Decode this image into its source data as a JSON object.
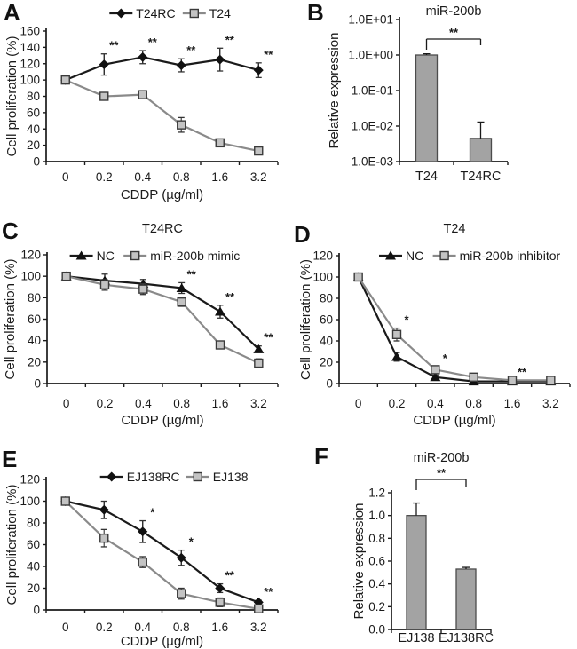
{
  "figure": {
    "background": "#ffffff",
    "text_color": "#1a1a1a",
    "colors": {
      "black_series": "#1a1a1a",
      "gray_series": "#8a8a8a",
      "square_marker_fill": "#c3c3c3",
      "square_marker_border": "#3a3a3a",
      "bar_fill": "#a3a3a3",
      "bar_border": "#4c4c4c"
    }
  },
  "chart_data": [
    {
      "panel": "A",
      "type": "line",
      "title": "",
      "xlabel": "CDDP (µg/ml)",
      "ylabel": "Cell proliferation (%)",
      "x_categories": [
        "0",
        "0.2",
        "0.4",
        "0.8",
        "1.6",
        "3.2"
      ],
      "ylim": [
        0,
        160
      ],
      "ytick_step": 20,
      "legend_position": "top",
      "series": [
        {
          "name": "T24RC",
          "marker": "diamond",
          "color": "#1a1a1a",
          "values": [
            100,
            119,
            128,
            118,
            125,
            112
          ],
          "errors": [
            0,
            13,
            8,
            8,
            14,
            9
          ],
          "sig": [
            "",
            "**",
            "**",
            "**",
            "**",
            "**"
          ]
        },
        {
          "name": "T24",
          "marker": "square",
          "color": "#8a8a8a",
          "values": [
            100,
            80,
            82,
            45,
            23,
            13
          ],
          "errors": [
            0,
            0,
            0,
            9,
            0,
            0
          ],
          "sig": [
            "",
            "",
            "",
            "",
            "",
            ""
          ]
        }
      ]
    },
    {
      "panel": "B",
      "type": "bar",
      "yscale": "log",
      "title": "miR-200b",
      "xlabel": "",
      "ylabel": "Relative expression",
      "categories": [
        "T24",
        "T24RC"
      ],
      "values": [
        1.0,
        0.0045
      ],
      "error_tops": [
        1.08,
        0.013
      ],
      "log_range": [
        -3,
        1
      ],
      "yticks": [
        {
          "v": 10,
          "label": "1.0E+01"
        },
        {
          "v": 1,
          "label": "1.0E+00"
        },
        {
          "v": 0.1,
          "label": "1.0E-01"
        },
        {
          "v": 0.01,
          "label": "1.0E-02"
        },
        {
          "v": 0.001,
          "label": "1.0E-03"
        }
      ],
      "sig": "**"
    },
    {
      "panel": "C",
      "type": "line",
      "title": "T24RC",
      "xlabel": "CDDP (µg/ml)",
      "ylabel": "Cell proliferation (%)",
      "x_categories": [
        "0",
        "0.2",
        "0.4",
        "0.8",
        "1.6",
        "3.2"
      ],
      "ylim": [
        0,
        120
      ],
      "ytick_step": 20,
      "legend_position": "top-inside",
      "series": [
        {
          "name": "NC",
          "marker": "triangle",
          "color": "#1a1a1a",
          "values": [
            100,
            96,
            93,
            89,
            67,
            32
          ],
          "errors": [
            0,
            6,
            4,
            5,
            6,
            3
          ],
          "sig": [
            "",
            "",
            "",
            "**",
            "**",
            "**"
          ]
        },
        {
          "name": "miR-200b mimic",
          "marker": "square",
          "color": "#8a8a8a",
          "values": [
            100,
            92,
            88,
            76,
            36,
            19
          ],
          "errors": [
            0,
            5,
            5,
            4,
            3,
            4
          ],
          "sig": [
            "",
            "",
            "",
            "",
            "",
            ""
          ]
        }
      ]
    },
    {
      "panel": "D",
      "type": "line",
      "title": "T24",
      "xlabel": "CDDP (µg/ml)",
      "ylabel": "Cell proliferation (%)",
      "x_categories": [
        "0",
        "0.2",
        "0.4",
        "0.8",
        "1.6",
        "3.2"
      ],
      "ylim": [
        0,
        120
      ],
      "ytick_step": 20,
      "legend_position": "top-inside",
      "series": [
        {
          "name": "NC",
          "marker": "triangle",
          "color": "#1a1a1a",
          "values": [
            100,
            25,
            6,
            2,
            2,
            2
          ],
          "errors": [
            0,
            4,
            2,
            0,
            0,
            0
          ],
          "sig": [
            "",
            "",
            "",
            "",
            "",
            ""
          ]
        },
        {
          "name": "miR-200b inhibitor",
          "marker": "square",
          "color": "#8a8a8a",
          "values": [
            100,
            46,
            13,
            6,
            3,
            3
          ],
          "errors": [
            0,
            6,
            3,
            2,
            0,
            0
          ],
          "sig": [
            "",
            "*",
            "*",
            "",
            "**",
            ""
          ]
        }
      ]
    },
    {
      "panel": "E",
      "type": "line",
      "title": "",
      "xlabel": "CDDP (µg/ml)",
      "ylabel": "Cell proliferation (%)",
      "x_categories": [
        "0",
        "0.2",
        "0.4",
        "0.8",
        "1.6",
        "3.2"
      ],
      "ylim": [
        0,
        120
      ],
      "ytick_step": 20,
      "legend_position": "top",
      "series": [
        {
          "name": "EJ138RC",
          "marker": "diamond",
          "color": "#1a1a1a",
          "values": [
            100,
            92,
            72,
            48,
            20,
            7
          ],
          "errors": [
            0,
            8,
            10,
            7,
            4,
            2
          ],
          "sig": [
            "",
            "",
            "*",
            "*",
            "**",
            "**"
          ]
        },
        {
          "name": "EJ138",
          "marker": "square",
          "color": "#8a8a8a",
          "values": [
            100,
            66,
            44,
            15,
            7,
            1
          ],
          "errors": [
            0,
            8,
            5,
            5,
            4,
            2
          ],
          "sig": [
            "",
            "",
            "",
            "",
            "",
            ""
          ]
        }
      ]
    },
    {
      "panel": "F",
      "type": "bar",
      "yscale": "linear",
      "title": "miR-200b",
      "xlabel": "",
      "ylabel": "Relative expression",
      "categories": [
        "EJ138",
        "EJ138RC"
      ],
      "values": [
        1.0,
        0.53
      ],
      "errors": [
        0.11,
        0.015
      ],
      "ylim": [
        0,
        1.2
      ],
      "yticks": [
        {
          "v": 0,
          "label": "0.0"
        },
        {
          "v": 0.2,
          "label": "0.2"
        },
        {
          "v": 0.4,
          "label": "0.4"
        },
        {
          "v": 0.6,
          "label": "0.6"
        },
        {
          "v": 0.8,
          "label": "0.8"
        },
        {
          "v": 1.0,
          "label": "1.0"
        },
        {
          "v": 1.2,
          "label": "1.2"
        }
      ],
      "sig": "**"
    }
  ]
}
